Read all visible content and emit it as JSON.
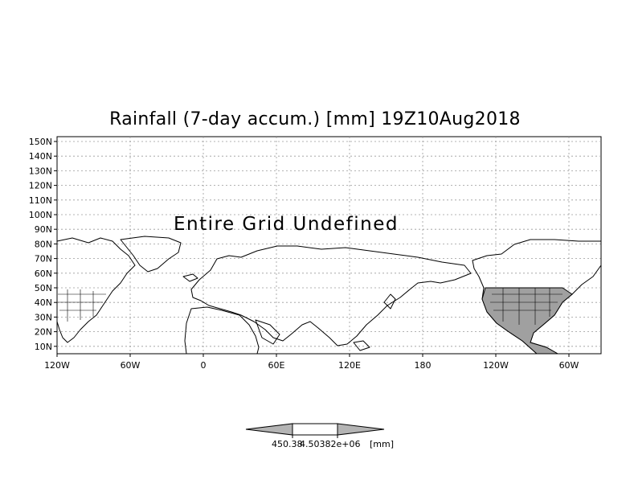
{
  "title": "Rainfall (7-day accum.) [mm] 19Z10Aug2018",
  "overlay_message": "Entire Grid Undefined",
  "y_tick_labels": [
    "150N",
    "140N",
    "130N",
    "120N",
    "110N",
    "100N",
    "90N",
    "80N",
    "70N",
    "60N",
    "50N",
    "40N",
    "30N",
    "20N",
    "10N"
  ],
  "x_tick_labels": [
    "120W",
    "60W",
    "0",
    "60E",
    "120E",
    "180",
    "120W",
    "60W"
  ],
  "colorbar": {
    "labels": [
      "450.38",
      "4.50382e+06"
    ],
    "unit": "[mm]",
    "colors": {
      "end_triangles": "#b4b4b4",
      "center_box": "#ffffff"
    }
  },
  "colors": {
    "background": "#ffffff",
    "land_outline": "#000000",
    "shaded_land": "#a0a0a0",
    "grid_dotted": "#9a9a9a"
  }
}
